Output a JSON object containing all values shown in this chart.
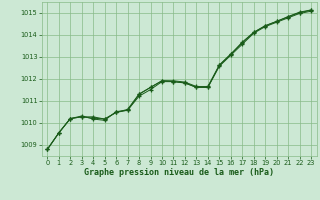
{
  "title": "Graphe pression niveau de la mer (hPa)",
  "bg_color": "#cce8d4",
  "grid_color": "#88bb88",
  "line_color": "#1a5c1a",
  "xlim": [
    -0.5,
    23.5
  ],
  "ylim": [
    1008.5,
    1015.5
  ],
  "yticks": [
    1009,
    1010,
    1011,
    1012,
    1013,
    1014,
    1015
  ],
  "xticks": [
    0,
    1,
    2,
    3,
    4,
    5,
    6,
    7,
    8,
    9,
    10,
    11,
    12,
    13,
    14,
    15,
    16,
    17,
    18,
    19,
    20,
    21,
    22,
    23
  ],
  "series1_x": [
    0,
    1,
    2,
    3,
    4,
    5,
    6,
    7,
    8,
    9,
    10,
    11,
    12,
    13,
    14,
    15,
    16,
    17,
    18,
    19,
    20,
    21,
    22,
    23
  ],
  "series1_y": [
    1008.8,
    1009.55,
    1010.2,
    1010.28,
    1010.22,
    1010.18,
    1010.48,
    1010.58,
    1011.22,
    1011.52,
    1011.88,
    1011.88,
    1011.82,
    1011.62,
    1011.62,
    1012.58,
    1013.08,
    1013.58,
    1014.08,
    1014.38,
    1014.58,
    1014.78,
    1014.98,
    1015.08
  ],
  "series2_x": [
    0,
    1,
    2,
    3,
    4,
    5,
    6,
    7,
    8,
    9,
    10,
    11,
    12,
    13,
    14,
    15,
    16,
    17,
    18,
    19,
    20,
    21,
    22,
    23
  ],
  "series2_y": [
    1008.8,
    1009.55,
    1010.2,
    1010.32,
    1010.18,
    1010.12,
    1010.52,
    1010.58,
    1011.3,
    1011.62,
    1011.92,
    1011.92,
    1011.86,
    1011.66,
    1011.66,
    1012.64,
    1013.14,
    1013.64,
    1014.12,
    1014.42,
    1014.62,
    1014.84,
    1015.04,
    1015.14
  ],
  "series3_x": [
    0,
    1,
    2,
    3,
    4,
    5,
    6,
    7,
    8,
    9,
    10,
    11,
    12,
    13,
    14,
    15,
    16,
    17,
    18,
    19,
    20,
    21,
    22,
    23
  ],
  "series3_y": [
    1008.8,
    1009.55,
    1010.2,
    1010.28,
    1010.28,
    1010.18,
    1010.48,
    1010.62,
    1011.32,
    1011.62,
    1011.92,
    1011.88,
    1011.82,
    1011.62,
    1011.62,
    1012.62,
    1013.12,
    1013.68,
    1014.12,
    1014.42,
    1014.62,
    1014.82,
    1015.02,
    1015.12
  ],
  "title_fontsize": 6.0,
  "tick_fontsize": 4.8
}
